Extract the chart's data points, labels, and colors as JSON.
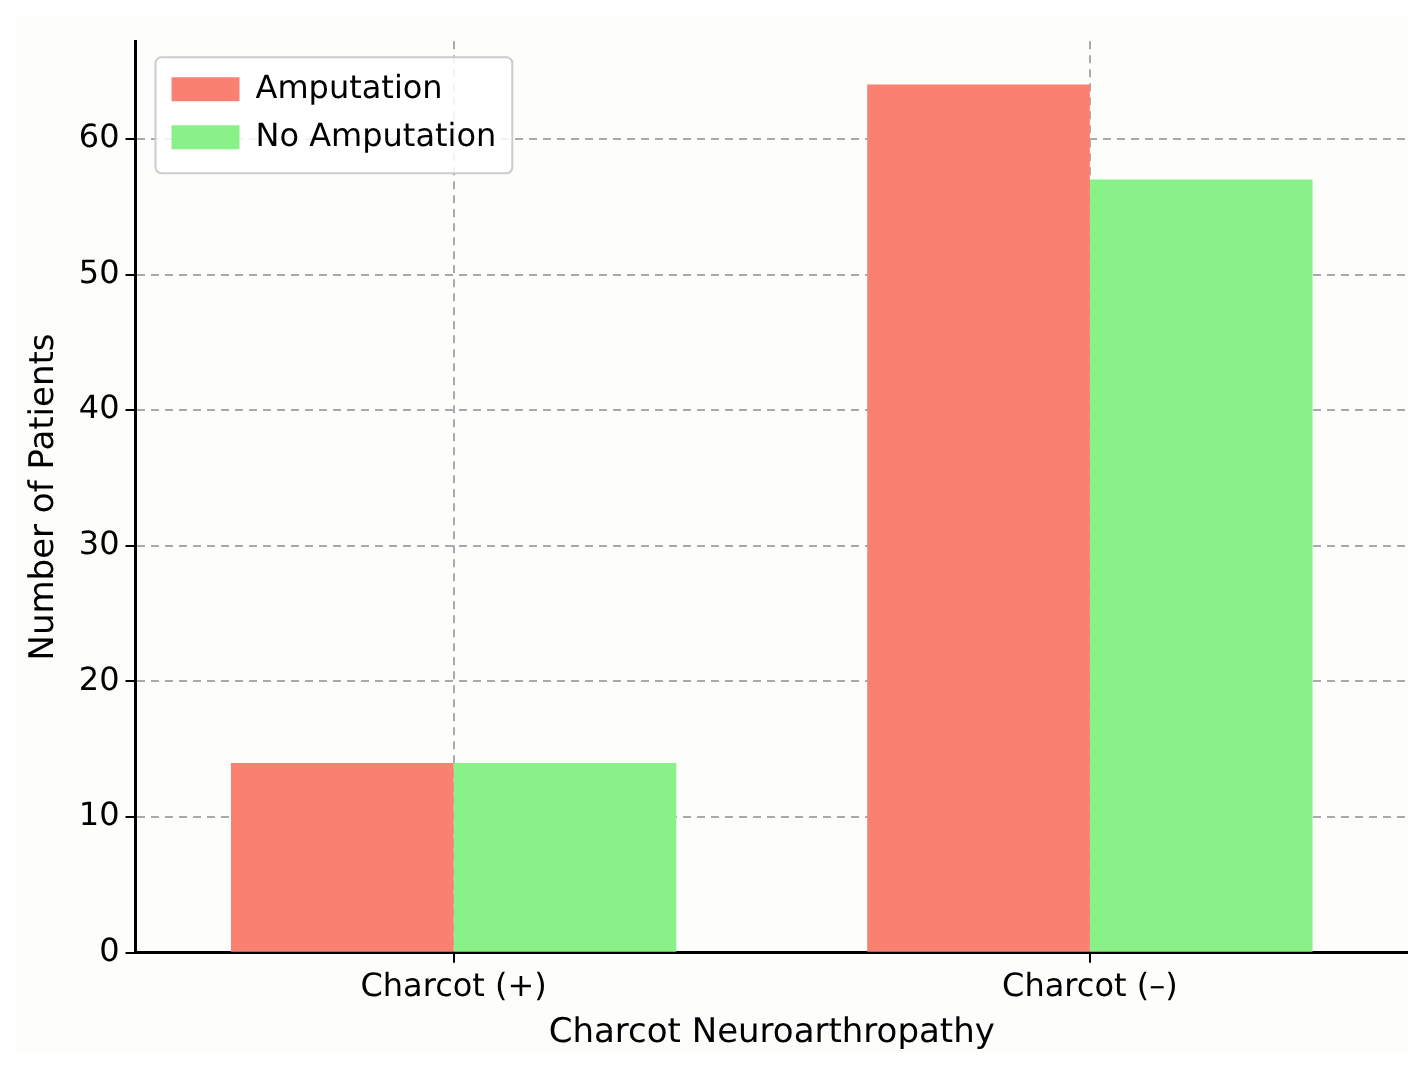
{
  "chart_data": {
    "type": "bar",
    "xlabel": "Charcot Neuroarthropathy",
    "ylabel": "Number of Patients",
    "categories": [
      "Charcot (+)",
      "Charcot (–)"
    ],
    "series": [
      {
        "name": "Amputation",
        "color": "#fa8072",
        "values": [
          14,
          64
        ]
      },
      {
        "name": "No Amputation",
        "color": "#88f288",
        "values": [
          14,
          57
        ]
      }
    ],
    "ylim": [
      0,
      67.2
    ],
    "yticks": [
      0,
      10,
      20,
      30,
      40,
      50,
      60
    ],
    "grid": true,
    "legend": "top left"
  }
}
